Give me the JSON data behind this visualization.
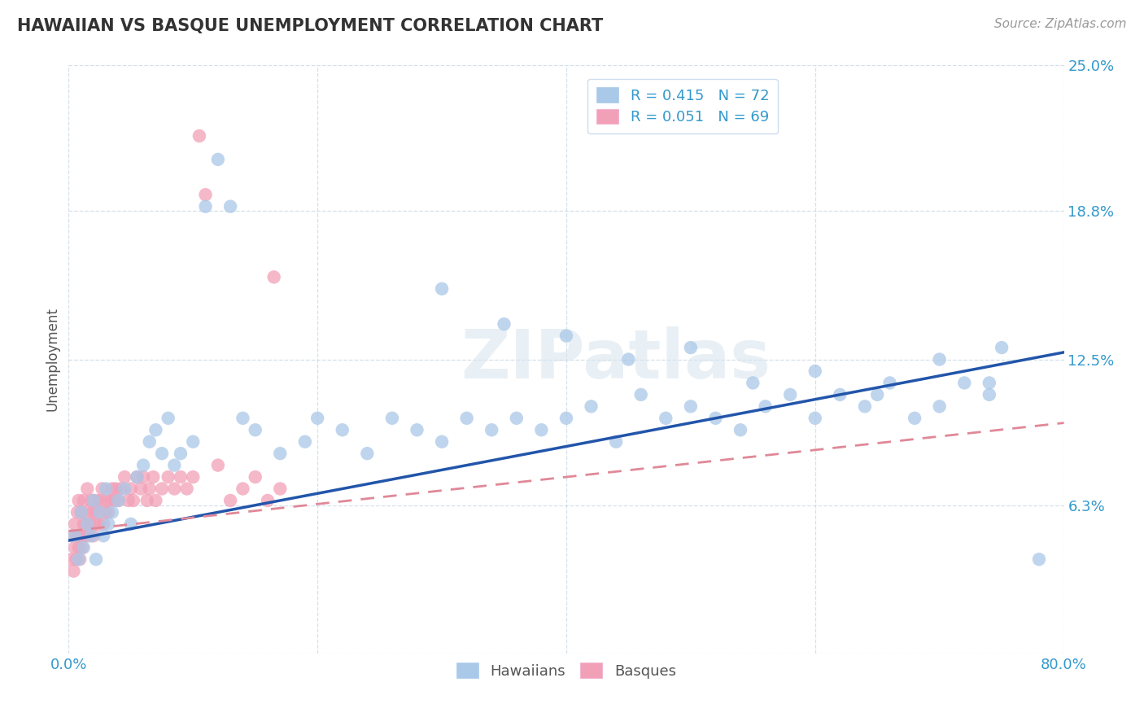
{
  "title": "HAWAIIAN VS BASQUE UNEMPLOYMENT CORRELATION CHART",
  "source_text": "Source: ZipAtlas.com",
  "ylabel": "Unemployment",
  "xlim": [
    0.0,
    0.8
  ],
  "ylim": [
    0.0,
    0.25
  ],
  "yticks": [
    0.0,
    0.063,
    0.125,
    0.188,
    0.25
  ],
  "ytick_labels": [
    "",
    "6.3%",
    "12.5%",
    "18.8%",
    "25.0%"
  ],
  "xticks": [
    0.0,
    0.2,
    0.4,
    0.6,
    0.8
  ],
  "xtick_labels": [
    "0.0%",
    "",
    "",
    "",
    "80.0%"
  ],
  "watermark": "ZIPatlas",
  "hawaiian_color": "#aac8e8",
  "basque_color": "#f2a0b8",
  "hawaiian_line_color": "#2255aa",
  "basque_line_color": "#e08898",
  "background_color": "#ffffff",
  "hawaiian_R": 0.415,
  "basque_R": 0.051,
  "hawaiian_N": 72,
  "basque_N": 69,
  "haw_line_x0": 0.0,
  "haw_line_y0": 0.048,
  "haw_line_x1": 0.8,
  "haw_line_y1": 0.128,
  "bas_line_x0": 0.0,
  "bas_line_y0": 0.052,
  "bas_line_x1": 0.8,
  "bas_line_y1": 0.098,
  "hawaiian_x": [
    0.005,
    0.008,
    0.01,
    0.012,
    0.015,
    0.018,
    0.02,
    0.022,
    0.025,
    0.028,
    0.03,
    0.032,
    0.035,
    0.04,
    0.045,
    0.05,
    0.055,
    0.06,
    0.065,
    0.07,
    0.075,
    0.08,
    0.085,
    0.09,
    0.1,
    0.11,
    0.12,
    0.13,
    0.14,
    0.15,
    0.17,
    0.19,
    0.2,
    0.22,
    0.24,
    0.26,
    0.28,
    0.3,
    0.32,
    0.34,
    0.36,
    0.38,
    0.4,
    0.42,
    0.44,
    0.46,
    0.48,
    0.5,
    0.52,
    0.54,
    0.56,
    0.58,
    0.6,
    0.62,
    0.64,
    0.66,
    0.68,
    0.7,
    0.72,
    0.74,
    0.3,
    0.35,
    0.4,
    0.45,
    0.5,
    0.55,
    0.6,
    0.65,
    0.7,
    0.74,
    0.75,
    0.78
  ],
  "hawaiian_y": [
    0.05,
    0.04,
    0.06,
    0.045,
    0.055,
    0.05,
    0.065,
    0.04,
    0.06,
    0.05,
    0.07,
    0.055,
    0.06,
    0.065,
    0.07,
    0.055,
    0.075,
    0.08,
    0.09,
    0.095,
    0.085,
    0.1,
    0.08,
    0.085,
    0.09,
    0.19,
    0.21,
    0.19,
    0.1,
    0.095,
    0.085,
    0.09,
    0.1,
    0.095,
    0.085,
    0.1,
    0.095,
    0.09,
    0.1,
    0.095,
    0.1,
    0.095,
    0.1,
    0.105,
    0.09,
    0.11,
    0.1,
    0.105,
    0.1,
    0.095,
    0.105,
    0.11,
    0.1,
    0.11,
    0.105,
    0.115,
    0.1,
    0.105,
    0.115,
    0.11,
    0.155,
    0.14,
    0.135,
    0.125,
    0.13,
    0.115,
    0.12,
    0.11,
    0.125,
    0.115,
    0.13,
    0.04
  ],
  "basque_x": [
    0.002,
    0.003,
    0.004,
    0.005,
    0.005,
    0.006,
    0.007,
    0.007,
    0.008,
    0.008,
    0.009,
    0.01,
    0.01,
    0.011,
    0.012,
    0.012,
    0.013,
    0.014,
    0.015,
    0.015,
    0.016,
    0.017,
    0.018,
    0.019,
    0.02,
    0.02,
    0.021,
    0.022,
    0.023,
    0.024,
    0.025,
    0.026,
    0.027,
    0.028,
    0.03,
    0.031,
    0.032,
    0.034,
    0.035,
    0.037,
    0.038,
    0.04,
    0.042,
    0.045,
    0.048,
    0.05,
    0.052,
    0.055,
    0.058,
    0.06,
    0.063,
    0.065,
    0.068,
    0.07,
    0.075,
    0.08,
    0.085,
    0.09,
    0.095,
    0.1,
    0.105,
    0.11,
    0.12,
    0.13,
    0.14,
    0.15,
    0.16,
    0.165,
    0.17
  ],
  "basque_y": [
    0.04,
    0.05,
    0.035,
    0.045,
    0.055,
    0.04,
    0.05,
    0.06,
    0.045,
    0.065,
    0.04,
    0.05,
    0.06,
    0.045,
    0.055,
    0.065,
    0.05,
    0.055,
    0.06,
    0.07,
    0.05,
    0.055,
    0.065,
    0.06,
    0.05,
    0.065,
    0.055,
    0.06,
    0.065,
    0.055,
    0.06,
    0.065,
    0.07,
    0.055,
    0.06,
    0.065,
    0.06,
    0.065,
    0.07,
    0.065,
    0.07,
    0.065,
    0.07,
    0.075,
    0.065,
    0.07,
    0.065,
    0.075,
    0.07,
    0.075,
    0.065,
    0.07,
    0.075,
    0.065,
    0.07,
    0.075,
    0.07,
    0.075,
    0.07,
    0.075,
    0.22,
    0.195,
    0.08,
    0.065,
    0.07,
    0.075,
    0.065,
    0.16,
    0.07
  ]
}
